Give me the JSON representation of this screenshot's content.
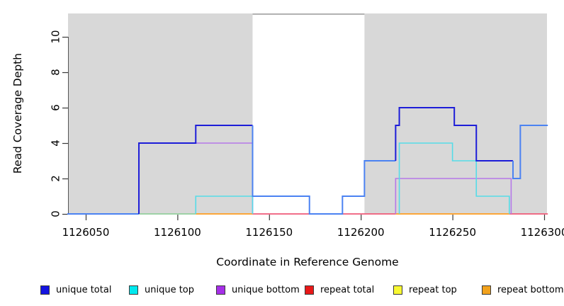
{
  "axes": {
    "y": {
      "label": "Read Coverage Depth"
    },
    "x": {
      "label": "Coordinate in Reference Genome"
    }
  },
  "chart_data": {
    "type": "line",
    "subtype": "step-coverage-plot",
    "title": "",
    "xlabel": "Coordinate in Reference Genome",
    "ylabel": "Read Coverage Depth",
    "xlim": [
      1126040,
      1126302
    ],
    "ylim": [
      0,
      11.3
    ],
    "x_ticks": [
      1126050,
      1126100,
      1126150,
      1126200,
      1126250,
      1126300
    ],
    "y_ticks": [
      0,
      2,
      4,
      6,
      8,
      10
    ],
    "grid": "off",
    "panel_bg": "#d8d8d8",
    "highlight_region": {
      "x0": 1126141,
      "x1": 1126202,
      "color": "#ffffff",
      "top_border_color": "#8f8f8f"
    },
    "series": [
      {
        "name": "unique total",
        "color": "#4b82f2",
        "dark_color": "#1d1dd8",
        "dark_ranges": [
          [
            1126079,
            1126141
          ],
          [
            1126219,
            1126283
          ]
        ],
        "width": 2,
        "paths": [
          [
            [
              1126040,
              0
            ],
            [
              1126079,
              0
            ],
            [
              1126079,
              4
            ],
            [
              1126110,
              4
            ],
            [
              1126110,
              5
            ],
            [
              1126141,
              5
            ],
            [
              1126141,
              1
            ],
            [
              1126172,
              1
            ],
            [
              1126172,
              0
            ],
            [
              1126190,
              0
            ],
            [
              1126190,
              1
            ],
            [
              1126202,
              1
            ],
            [
              1126202,
              3
            ],
            [
              1126219,
              3
            ],
            [
              1126219,
              5
            ],
            [
              1126221,
              5
            ],
            [
              1126221,
              6
            ],
            [
              1126251,
              6
            ],
            [
              1126251,
              5
            ],
            [
              1126263,
              5
            ],
            [
              1126263,
              3
            ],
            [
              1126283,
              3
            ],
            [
              1126283,
              2
            ],
            [
              1126287,
              2
            ],
            [
              1126287,
              5
            ],
            [
              1126302,
              5
            ]
          ]
        ]
      },
      {
        "name": "unique top",
        "color": "#55dce8",
        "width": 1.6,
        "paths": [
          [
            [
              1126110,
              0
            ],
            [
              1126110,
              1
            ],
            [
              1126141,
              1
            ],
            [
              1126141,
              0
            ]
          ],
          [
            [
              1126221,
              0
            ],
            [
              1126221,
              4
            ],
            [
              1126250,
              4
            ],
            [
              1126250,
              3
            ],
            [
              1126263,
              3
            ],
            [
              1126263,
              1
            ],
            [
              1126281,
              1
            ],
            [
              1126281,
              0
            ]
          ]
        ]
      },
      {
        "name": "unique bottom",
        "color": "#b678e8",
        "width": 1.6,
        "paths": [
          [
            [
              1126079,
              0
            ],
            [
              1126079,
              4
            ],
            [
              1126141,
              4
            ],
            [
              1126141,
              0
            ]
          ],
          [
            [
              1126219,
              0
            ],
            [
              1126219,
              2
            ],
            [
              1126282,
              2
            ],
            [
              1126282,
              0
            ]
          ]
        ]
      },
      {
        "name": "repeat total",
        "color": "#ef5a78",
        "width": 1.6,
        "paths": []
      },
      {
        "name": "repeat top",
        "color": "#f5e940",
        "width": 1.6,
        "paths": []
      },
      {
        "name": "repeat bottom",
        "color": "#ff9d20",
        "width": 1.6,
        "paths": []
      }
    ],
    "baseline_segments": [
      {
        "x0": 1126040,
        "x1": 1126079,
        "color": "#7e68ea"
      },
      {
        "x0": 1126079,
        "x1": 1126110,
        "color": "#93cf9d"
      },
      {
        "x0": 1126110,
        "x1": 1126141,
        "color": "#ff9d20"
      },
      {
        "x0": 1126141,
        "x1": 1126219,
        "color": "#ef5a78"
      },
      {
        "x0": 1126219,
        "x1": 1126281,
        "color": "#ff9d20"
      },
      {
        "x0": 1126281,
        "x1": 1126302,
        "color": "#ef5a78"
      }
    ]
  },
  "legend": {
    "items": [
      {
        "label": "unique total",
        "color": "#1414e0"
      },
      {
        "label": "unique top",
        "color": "#00e8ee"
      },
      {
        "label": "unique bottom",
        "color": "#a62fe8"
      },
      {
        "label": "repeat total",
        "color": "#e81818"
      },
      {
        "label": "repeat top",
        "color": "#f8f832"
      },
      {
        "label": "repeat bottom",
        "color": "#f2a21c"
      }
    ]
  }
}
